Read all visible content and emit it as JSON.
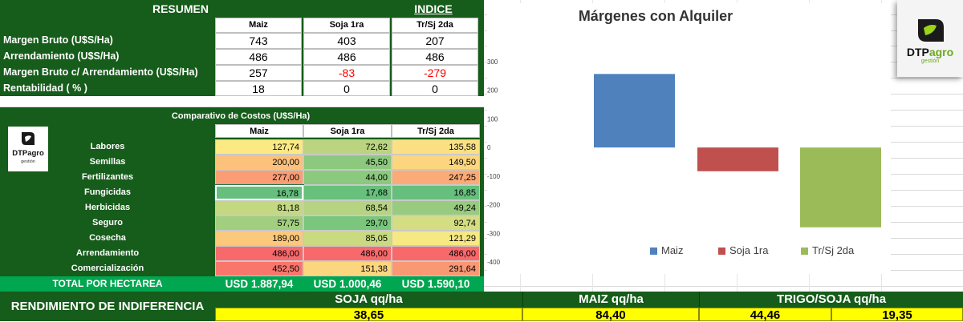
{
  "resumen": {
    "title": "RESUMEN",
    "indice": "INDICE",
    "columns": [
      "Maiz",
      "Soja 1ra",
      "Tr/Sj 2da"
    ],
    "rows": [
      {
        "label": "Margen Bruto (U$S/Ha)",
        "values": [
          "743",
          "403",
          "207"
        ],
        "colors": [
          "#000000",
          "#000000",
          "#000000"
        ]
      },
      {
        "label": "Arrendamiento (U$S/Ha)",
        "values": [
          "486",
          "486",
          "486"
        ],
        "colors": [
          "#000000",
          "#000000",
          "#000000"
        ]
      },
      {
        "label": "Margen Bruto c/ Arrendamiento (U$S/Ha)",
        "values": [
          "257",
          "-83",
          "-279"
        ],
        "colors": [
          "#000000",
          "#ff0000",
          "#ff0000"
        ]
      },
      {
        "label": "Rentabilidad ( % )",
        "values": [
          "18",
          "0",
          "0"
        ],
        "colors": [
          "#000000",
          "#000000",
          "#000000"
        ]
      }
    ]
  },
  "costos": {
    "title": "Comparativo de Costos (U$S/Ha)",
    "columns": [
      "Maiz",
      "Soja 1ra",
      "Tr/Sj 2da"
    ],
    "rows": [
      {
        "label": "Labores",
        "values": [
          "127,74",
          "72,62",
          "135,58"
        ],
        "colors": [
          "#fce983",
          "#bad480",
          "#fbe083"
        ]
      },
      {
        "label": "Semillas",
        "values": [
          "200,00",
          "45,50",
          "149,50"
        ],
        "colors": [
          "#fcc27b",
          "#8cc97e",
          "#fcd67f"
        ]
      },
      {
        "label": "Fertilizantes",
        "values": [
          "277,00",
          "44,00",
          "247,25"
        ],
        "colors": [
          "#fa9d75",
          "#8bc97e",
          "#fbab77"
        ]
      },
      {
        "label": "Fungicidas",
        "values": [
          "16,78",
          "17,68",
          "16,85"
        ],
        "colors": [
          "#66bf7c",
          "#67c07c",
          "#66bf7c"
        ]
      },
      {
        "label": "Herbicidas",
        "values": [
          "81,18",
          "68,54",
          "49,24"
        ],
        "colors": [
          "#c4d881",
          "#b5d380",
          "#98cb7e"
        ]
      },
      {
        "label": "Seguro",
        "values": [
          "57,75",
          "29,70",
          "92,74"
        ],
        "colors": [
          "#a2ce7f",
          "#7ac67d",
          "#d5dd82"
        ]
      },
      {
        "label": "Cosecha",
        "values": [
          "189,00",
          "85,05",
          "121,29"
        ],
        "colors": [
          "#fcc87c",
          "#c9da81",
          "#f6e883"
        ]
      },
      {
        "label": "Arrendamiento",
        "values": [
          "486,00",
          "486,00",
          "486,00"
        ],
        "colors": [
          "#f8696b",
          "#f8696b",
          "#f8696b"
        ]
      },
      {
        "label": "Comercialización",
        "values": [
          "452,50",
          "151,38",
          "291,64"
        ],
        "colors": [
          "#f9766d",
          "#fcd67f",
          "#fa9874"
        ]
      }
    ],
    "total_label": "TOTAL POR HECTAREA",
    "totals": [
      "USD 1.887,94",
      "USD 1.000,46",
      "USD 1.590,10"
    ]
  },
  "logo": {
    "small_brand": "DTPagro",
    "small_sub": "gestión",
    "big_brand_a": "DTP",
    "big_brand_b": "agro",
    "big_sub": "gestión"
  },
  "rendimiento": {
    "label": "RENDIMIENTO DE INDIFERENCIA",
    "headers": [
      "SOJA qq/ha",
      "MAIZ qq/ha",
      "TRIGO/SOJA qq/ha"
    ],
    "values": [
      "38,65",
      "84,40",
      "44,46",
      "19,35"
    ]
  },
  "chart_data": {
    "type": "bar",
    "title": "Márgenes con Alquiler",
    "series": [
      {
        "name": "Maiz",
        "values": [
          257
        ],
        "color": "#4f81bd"
      },
      {
        "name": "Soja 1ra",
        "values": [
          -83
        ],
        "color": "#c0504d"
      },
      {
        "name": "Tr/Sj 2da",
        "values": [
          -279
        ],
        "color": "#9bbb59"
      }
    ],
    "ylim": [
      -400,
      300
    ],
    "yticks": [
      "300",
      "200",
      "100",
      "0",
      "-100",
      "-200",
      "-300",
      "-400"
    ],
    "legend": "bottom",
    "grid": false
  }
}
